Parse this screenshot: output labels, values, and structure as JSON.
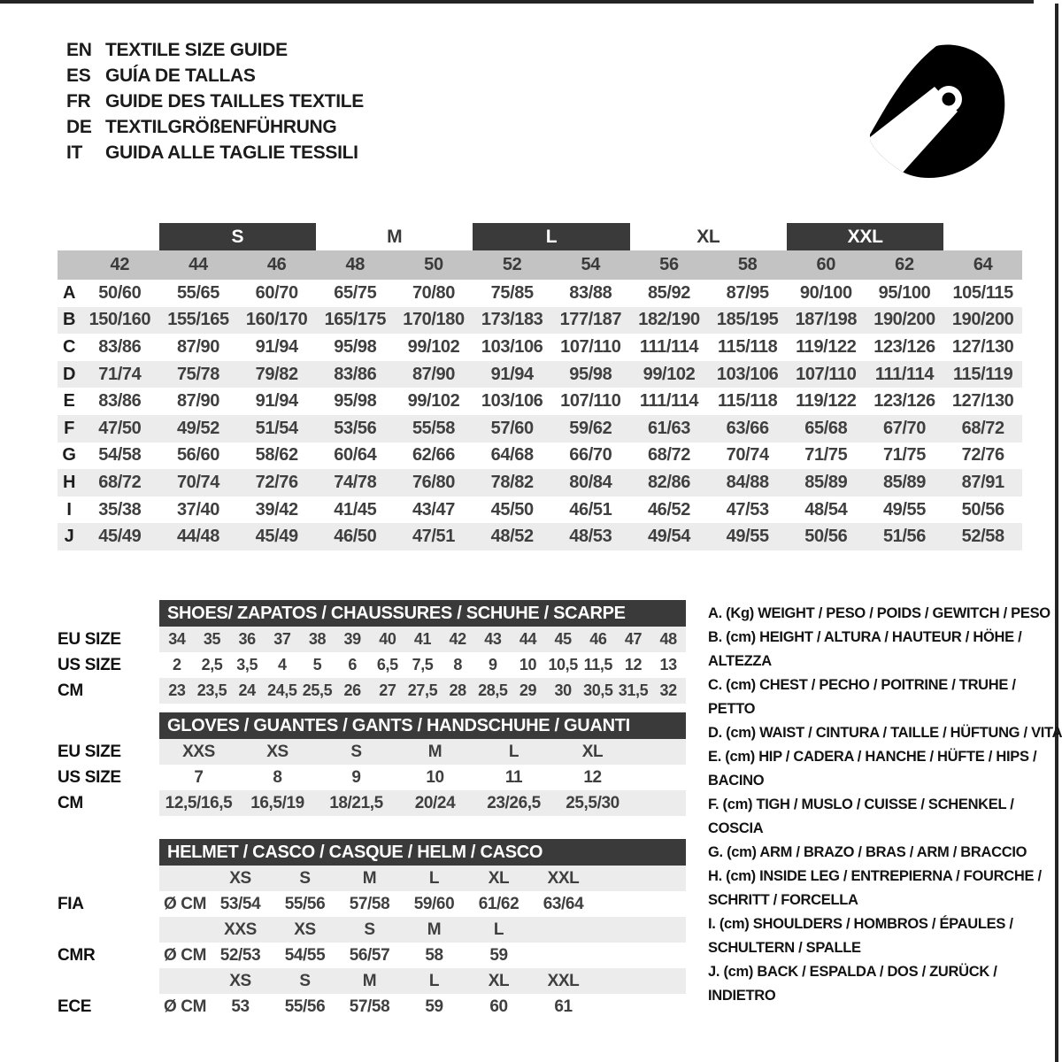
{
  "header": {
    "languages": [
      {
        "code": "EN",
        "label": "TEXTILE SIZE GUIDE"
      },
      {
        "code": "ES",
        "label": "GUÍA DE TALLAS"
      },
      {
        "code": "FR",
        "label": "GUIDE DES TAILLES TEXTILE"
      },
      {
        "code": "DE",
        "label": "TEXTILGRÖßENFÜHRUNG"
      },
      {
        "code": "IT",
        "label": "GUIDA ALLE TAGLIE TESSILI"
      }
    ]
  },
  "icons": {
    "helmet": "racing-helmet-icon"
  },
  "colors": {
    "header_bar": "#3a3a3a",
    "numeric_band": "#c3c3c3",
    "row_stripe": "#ececec",
    "text": "#3f3f3f"
  },
  "textile_table": {
    "size_groups": [
      {
        "label": "S",
        "boxed": true
      },
      {
        "label": "M",
        "boxed": false
      },
      {
        "label": "L",
        "boxed": true
      },
      {
        "label": "XL",
        "boxed": false
      },
      {
        "label": "XXL",
        "boxed": true
      }
    ],
    "numeric_sizes": [
      "42",
      "44",
      "46",
      "48",
      "50",
      "52",
      "54",
      "56",
      "58",
      "60",
      "62",
      "64"
    ],
    "rows": [
      {
        "key": "A",
        "values": [
          "50/60",
          "55/65",
          "60/70",
          "65/75",
          "70/80",
          "75/85",
          "83/88",
          "85/92",
          "87/95",
          "90/100",
          "95/100",
          "105/115"
        ]
      },
      {
        "key": "B",
        "values": [
          "150/160",
          "155/165",
          "160/170",
          "165/175",
          "170/180",
          "173/183",
          "177/187",
          "182/190",
          "185/195",
          "187/198",
          "190/200",
          "190/200"
        ]
      },
      {
        "key": "C",
        "values": [
          "83/86",
          "87/90",
          "91/94",
          "95/98",
          "99/102",
          "103/106",
          "107/110",
          "111/114",
          "115/118",
          "119/122",
          "123/126",
          "127/130"
        ]
      },
      {
        "key": "D",
        "values": [
          "71/74",
          "75/78",
          "79/82",
          "83/86",
          "87/90",
          "91/94",
          "95/98",
          "99/102",
          "103/106",
          "107/110",
          "111/114",
          "115/119"
        ]
      },
      {
        "key": "E",
        "values": [
          "83/86",
          "87/90",
          "91/94",
          "95/98",
          "99/102",
          "103/106",
          "107/110",
          "111/114",
          "115/118",
          "119/122",
          "123/126",
          "127/130"
        ]
      },
      {
        "key": "F",
        "values": [
          "47/50",
          "49/52",
          "51/54",
          "53/56",
          "55/58",
          "57/60",
          "59/62",
          "61/63",
          "63/66",
          "65/68",
          "67/70",
          "68/72"
        ]
      },
      {
        "key": "G",
        "values": [
          "54/58",
          "56/60",
          "58/62",
          "60/64",
          "62/66",
          "64/68",
          "66/70",
          "68/72",
          "70/74",
          "71/75",
          "71/75",
          "72/76"
        ]
      },
      {
        "key": "H",
        "values": [
          "68/72",
          "70/74",
          "72/76",
          "74/78",
          "76/80",
          "78/82",
          "80/84",
          "82/86",
          "84/88",
          "85/89",
          "85/89",
          "87/91"
        ]
      },
      {
        "key": "I",
        "values": [
          "35/38",
          "37/40",
          "39/42",
          "41/45",
          "43/47",
          "45/50",
          "46/51",
          "46/52",
          "47/53",
          "48/54",
          "49/55",
          "50/56"
        ]
      },
      {
        "key": "J",
        "values": [
          "45/49",
          "44/48",
          "45/49",
          "46/50",
          "47/51",
          "48/52",
          "48/53",
          "49/54",
          "49/55",
          "50/56",
          "51/56",
          "52/58"
        ]
      }
    ]
  },
  "shoes_table": {
    "title": "SHOES/ ZAPATOS / CHAUSSURES / SCHUHE / SCARPE",
    "rows": [
      {
        "label": "EU SIZE",
        "values": [
          "34",
          "35",
          "36",
          "37",
          "38",
          "39",
          "40",
          "41",
          "42",
          "43",
          "44",
          "45",
          "46",
          "47",
          "48"
        ]
      },
      {
        "label": "US SIZE",
        "values": [
          "2",
          "2,5",
          "3,5",
          "4",
          "5",
          "6",
          "6,5",
          "7,5",
          "8",
          "9",
          "10",
          "10,5",
          "11,5",
          "12",
          "13"
        ]
      },
      {
        "label": "CM",
        "values": [
          "23",
          "23,5",
          "24",
          "24,5",
          "25,5",
          "26",
          "27",
          "27,5",
          "28",
          "28,5",
          "29",
          "30",
          "30,5",
          "31,5",
          "32"
        ]
      }
    ]
  },
  "gloves_table": {
    "title": "GLOVES / GUANTES / GANTS / HANDSCHUHE / GUANTI",
    "rows": [
      {
        "label": "EU SIZE",
        "values": [
          "XXS",
          "XS",
          "S",
          "M",
          "L",
          "XL"
        ]
      },
      {
        "label": "US SIZE",
        "values": [
          "7",
          "8",
          "9",
          "10",
          "11",
          "12"
        ]
      },
      {
        "label": "CM",
        "values": [
          "12,5/16,5",
          "16,5/19",
          "18/21,5",
          "20/24",
          "23/26,5",
          "25,5/30"
        ]
      }
    ]
  },
  "helmet_table": {
    "title": "HELMET / CASCO / CASQUE / HELM / CASCO",
    "sections": [
      {
        "label": "FIA",
        "unit": "Ø CM",
        "sizes": [
          "XS",
          "S",
          "M",
          "L",
          "XL",
          "XXL"
        ],
        "values": [
          "53/54",
          "55/56",
          "57/58",
          "59/60",
          "61/62",
          "63/64"
        ]
      },
      {
        "label": "CMR",
        "unit": "Ø CM",
        "sizes": [
          "XXS",
          "XS",
          "S",
          "M",
          "L",
          ""
        ],
        "values": [
          "52/53",
          "54/55",
          "56/57",
          "58",
          "59",
          ""
        ]
      },
      {
        "label": "ECE",
        "unit": "Ø CM",
        "sizes": [
          "XS",
          "S",
          "M",
          "L",
          "XL",
          "XXL"
        ],
        "values": [
          "53",
          "55/56",
          "57/58",
          "59",
          "60",
          "61"
        ]
      }
    ]
  },
  "legend": {
    "items": [
      "A. (Kg) WEIGHT / PESO / POIDS / GEWITCH / PESO",
      "B. (cm) HEIGHT / ALTURA / HAUTEUR / HÖHE / ALTEZZA",
      "C. (cm) CHEST / PECHO / POITRINE / TRUHE / PETTO",
      "D. (cm) WAIST / CINTURA / TAILLE / HÜFTUNG / VITA",
      "E. (cm) HIP / CADERA / HANCHE / HÜFTE / HIPS / BACINO",
      "F. (cm) TIGH / MUSLO / CUISSE / SCHENKEL / COSCIA",
      "G. (cm) ARM / BRAZO / BRAS / ARM / BRACCIO",
      "H. (cm) INSIDE LEG / ENTREPIERNA / FOURCHE / SCHRITT / FORCELLA",
      "I. (cm) SHOULDERS / HOMBROS / ÉPAULES / SCHULTERN / SPALLE",
      "J. (cm) BACK / ESPALDA / DOS / ZURÜCK / INDIETRO"
    ]
  }
}
